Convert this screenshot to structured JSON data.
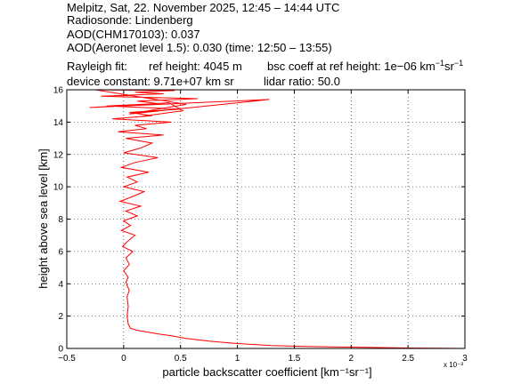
{
  "header": {
    "line1": "Melpitz, Sat, 22. November 2025, 12:45 – 14:44 UTC",
    "line2": "Radiosonde: Lindenberg",
    "line3": "AOD(CHM170103): 0.037",
    "line4": "AOD(Aeronet level 1.5): 0.030   (time: 12:50 – 13:55)",
    "rayleigh_label": "Rayleigh fit:",
    "ref_height": "ref height: 4045 m",
    "bsc_prefix": "bsc coeff at ref height: 1e−06 km",
    "device_constant": "device constant: 9.71e+07 km sr",
    "lidar_ratio": "lidar ratio: 50.0"
  },
  "chart_data": {
    "type": "line",
    "xlabel": "particle backscatter coefficient [km⁻¹sr⁻¹]",
    "ylabel": "height above sea level [km]",
    "x_multiplier": "x 10⁻³",
    "xlim": [
      -0.5,
      3
    ],
    "ylim": [
      0,
      16
    ],
    "xticks": [
      "−0.5",
      "0",
      "0.5",
      "1",
      "1.5",
      "2",
      "2.5",
      "3"
    ],
    "yticks": [
      "0",
      "2",
      "4",
      "6",
      "8",
      "10",
      "12",
      "14",
      "16"
    ],
    "grid": true,
    "line_color": "#ff0000",
    "series": [
      {
        "x": [
          3.0,
          2.5,
          2.0,
          1.6,
          1.3,
          1.0,
          0.75,
          0.55,
          0.42,
          0.3,
          0.2,
          0.12,
          0.06,
          0.04,
          0.03,
          0.04,
          0.03,
          0.05,
          0.03,
          0.02,
          0.04,
          0.0,
          0.05,
          0.02,
          0.08,
          -0.01,
          0.03,
          0.1,
          -0.02,
          0.06,
          0.0,
          0.12,
          0.02,
          0.15,
          -0.03,
          0.08,
          0.18,
          0.0,
          0.12,
          0.03,
          0.22,
          -0.02,
          0.1,
          0.3,
          0.0,
          0.15,
          0.25,
          0.02,
          0.35,
          -0.05,
          0.2,
          0.1,
          0.42,
          -0.1,
          0.25,
          0.05,
          0.5,
          -0.15,
          0.3,
          0.12,
          0.65,
          -0.2,
          0.35,
          0.1,
          0.45,
          -0.25,
          0.55,
          0.05,
          1.28,
          -0.3,
          0.4,
          0.52,
          0.1
        ],
        "y": [
          0.0,
          0.03,
          0.08,
          0.12,
          0.18,
          0.3,
          0.45,
          0.62,
          0.78,
          0.9,
          1.02,
          1.12,
          1.25,
          1.5,
          2.0,
          2.6,
          3.2,
          3.6,
          3.9,
          4.1,
          4.4,
          4.8,
          5.2,
          5.6,
          6.0,
          6.3,
          6.6,
          7.0,
          7.3,
          7.6,
          7.9,
          8.2,
          8.5,
          8.8,
          9.1,
          9.4,
          9.7,
          10.0,
          10.3,
          10.6,
          10.9,
          11.2,
          11.5,
          11.8,
          12.1,
          12.4,
          12.7,
          13.0,
          13.2,
          13.4,
          13.6,
          13.8,
          14.0,
          14.2,
          14.4,
          14.6,
          14.8,
          15.0,
          15.15,
          15.3,
          15.45,
          15.6,
          15.75,
          15.85,
          15.95,
          16.0,
          15.1,
          14.5,
          15.4,
          14.9,
          15.2,
          14.7,
          14.3
        ]
      }
    ]
  }
}
